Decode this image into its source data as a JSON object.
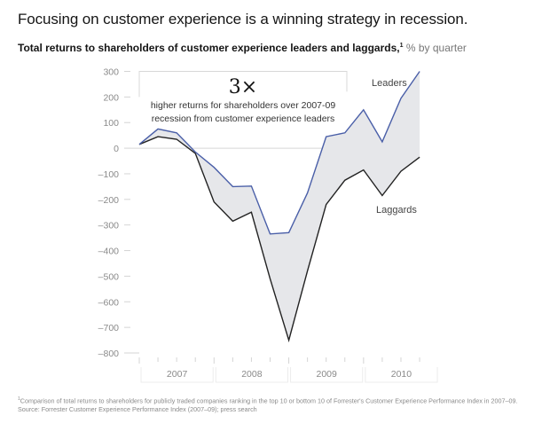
{
  "title": "Focusing on customer experience is a winning strategy in recession.",
  "subtitle": {
    "main": "Total returns to shareholders of customer experience leaders and laggards,",
    "footnote_marker": "1",
    "unit": "% by quarter"
  },
  "callout": {
    "big": "3×",
    "line1": "higher returns for shareholders over 2007-09",
    "line2": "recession from customer experience leaders"
  },
  "footnote": {
    "marker": "1",
    "text": "Comparison of total returns to shareholders for publicly traded companies ranking in the top 10 or bottom 10 of Forrester's Customer Experience Performance Index in 2007–09.",
    "source": "Source: Forrester Customer Experience Performance Index (2007–09); press search"
  },
  "colors": {
    "leaders_line": "#4a5fa8",
    "laggards_line": "#222222",
    "band_fill": "#e6e7ea",
    "axis_text": "#8a8a8a",
    "tick": "#d4d4d4"
  },
  "chart_data": {
    "type": "line",
    "title": "Total returns to shareholders of customer experience leaders and laggards",
    "xlabel": "",
    "ylabel": "% by quarter",
    "ylim": [
      -800,
      300
    ],
    "yticks": [
      300,
      200,
      100,
      0,
      -100,
      -200,
      -300,
      -400,
      -500,
      -600,
      -700,
      -800
    ],
    "ytick_labels": [
      "300",
      "200",
      "100",
      "0",
      "–100",
      "–200",
      "–300",
      "–400",
      "–500",
      "–600",
      "–700",
      "–800"
    ],
    "x": [
      "2007 Q1",
      "2007 Q2",
      "2007 Q3",
      "2007 Q4",
      "2008 Q1",
      "2008 Q2",
      "2008 Q3",
      "2008 Q4",
      "2009 Q1",
      "2009 Q2",
      "2009 Q3",
      "2009 Q4",
      "2010 Q1",
      "2010 Q2",
      "2010 Q3",
      "2010 Q4"
    ],
    "year_groups": [
      "2007",
      "2008",
      "2009",
      "2010"
    ],
    "grid": false,
    "zero_line": true,
    "legend": "inline-labels",
    "series": [
      {
        "name": "Leaders",
        "values": [
          15,
          75,
          60,
          -15,
          -75,
          -150,
          -148,
          -335,
          -330,
          -175,
          45,
          60,
          150,
          25,
          195,
          300
        ]
      },
      {
        "name": "Laggards",
        "values": [
          15,
          45,
          35,
          -20,
          -210,
          -285,
          -250,
          -510,
          -750,
          -480,
          -220,
          -125,
          -85,
          -185,
          -90,
          -35
        ]
      }
    ],
    "annotations": [
      "3× higher returns for shareholders over 2007-09 recession from customer experience leaders"
    ]
  }
}
